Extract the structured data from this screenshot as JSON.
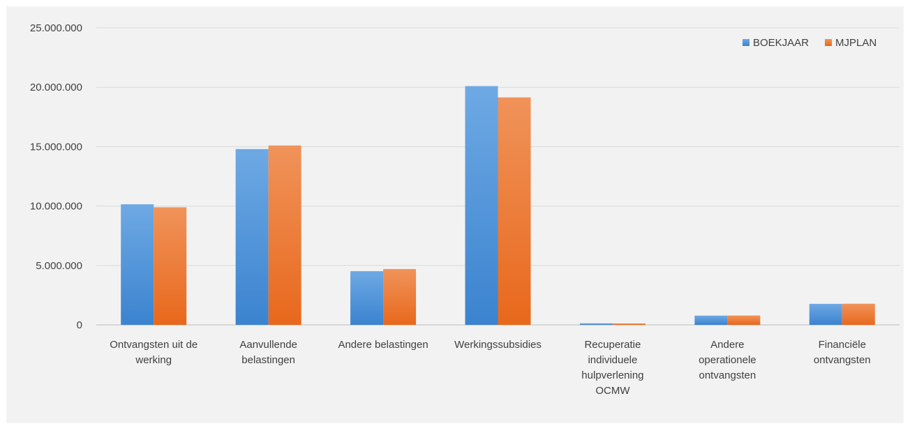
{
  "chart_data": {
    "type": "bar",
    "categories": [
      [
        "Ontvangsten uit de",
        "werking"
      ],
      [
        "Aanvullende",
        "belastingen"
      ],
      [
        "Andere belastingen"
      ],
      [
        "Werkingssubsidies"
      ],
      [
        "Recuperatie",
        "individuele",
        "hulpverlening",
        "OCMW"
      ],
      [
        "Andere",
        "operationele",
        "ontvangsten"
      ],
      [
        "Financiële",
        "ontvangsten"
      ]
    ],
    "series": [
      {
        "name": "BOEKJAAR",
        "color": "#4a90d9",
        "values": [
          10150000,
          14800000,
          4520000,
          20100000,
          130000,
          780000,
          1770000
        ]
      },
      {
        "name": "MJPLAN",
        "color": "#ef7a2e",
        "values": [
          9900000,
          15100000,
          4700000,
          19150000,
          120000,
          790000,
          1780000
        ]
      }
    ],
    "ylim": [
      0,
      25000000
    ],
    "yticks": [
      "0",
      "5.000.000",
      "10.000.000",
      "15.000.000",
      "20.000.000",
      "25.000.000"
    ],
    "ytick_values": [
      0,
      5000000,
      10000000,
      15000000,
      20000000,
      25000000
    ],
    "grid": true,
    "legend_position": "top-right",
    "title": "",
    "xlabel": "",
    "ylabel": ""
  }
}
